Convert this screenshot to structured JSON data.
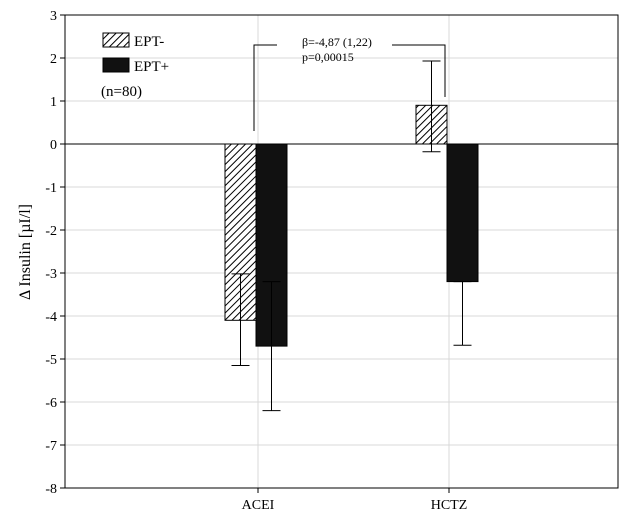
{
  "chart_data": {
    "type": "bar",
    "categories": [
      "ACEI",
      "HCTZ"
    ],
    "series": [
      {
        "name": "EPT-",
        "values": [
          -4.1,
          0.9
        ],
        "error_low": [
          -5.15,
          -0.18
        ],
        "error_high": [
          -3.02,
          1.93
        ],
        "fill": "hatched"
      },
      {
        "name": "EPT+",
        "values": [
          -4.7,
          -3.2
        ],
        "error_low": [
          -6.2,
          -4.68
        ],
        "error_high": [
          -3.2,
          -3.2
        ],
        "fill": "solid"
      }
    ],
    "ylabel": "Δ Insulin [µI/l]",
    "ylim": [
      -8,
      3
    ],
    "yticks": [
      "3",
      "2",
      "1",
      "0",
      "-1",
      "-2",
      "-3",
      "-4",
      "-5",
      "-6",
      "-7",
      "-8"
    ],
    "ytick_values": [
      3,
      2,
      1,
      0,
      -1,
      -2,
      -3,
      -4,
      -5,
      -6,
      -7,
      -8
    ],
    "grid": true,
    "legend_position": "top-left",
    "legend_note": "(n=80)",
    "annotation": {
      "line1": "β=-4,87 (1,22)",
      "line2": "p=0,00015"
    },
    "colors": {
      "bar_fill": "#111111",
      "grid": "#d8d8d8",
      "axis": "#000000"
    }
  }
}
